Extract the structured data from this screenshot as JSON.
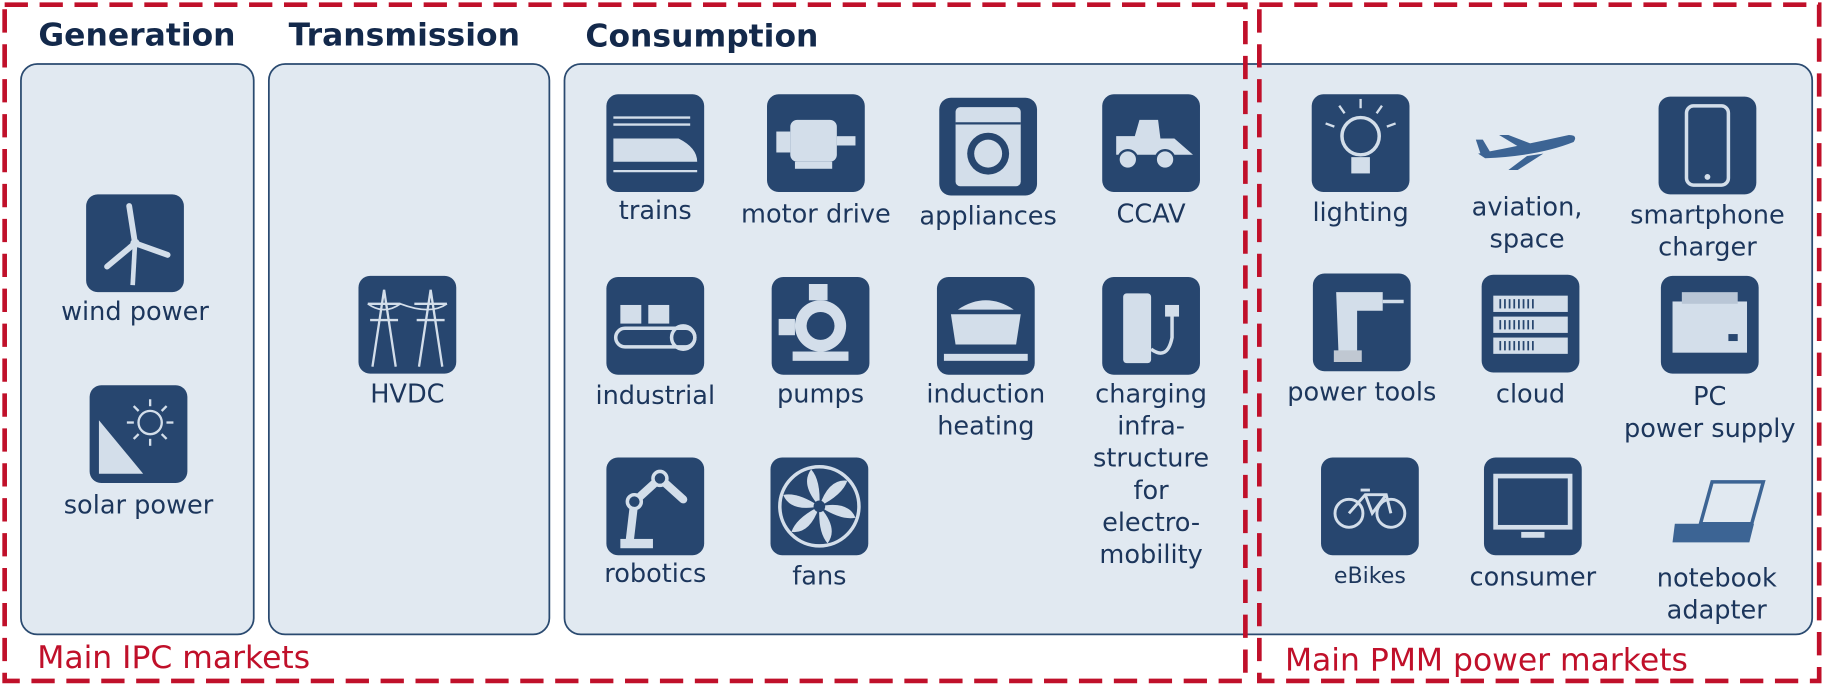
{
  "sections": [
    {
      "title": "Generation",
      "items": [
        {
          "label": [
            "wind power"
          ]
        },
        {
          "label": [
            "solar power"
          ]
        }
      ]
    },
    {
      "title": "Transmission",
      "items": [
        {
          "label": [
            "HVDC"
          ]
        }
      ]
    },
    {
      "title": "Consumption",
      "items": [
        {
          "label": [
            "trains"
          ]
        },
        {
          "label": [
            "motor drive"
          ]
        },
        {
          "label": [
            "appliances"
          ]
        },
        {
          "label": [
            "CCAV"
          ]
        },
        {
          "label": [
            "industrial"
          ]
        },
        {
          "label": [
            "pumps"
          ]
        },
        {
          "label": [
            "induction",
            "heating"
          ]
        },
        {
          "label": [
            "charging",
            "infra-",
            "structure",
            "for",
            "electro-",
            "mobility"
          ]
        },
        {
          "label": [
            "robotics"
          ]
        },
        {
          "label": [
            "fans"
          ]
        },
        {
          "label": [
            "lighting"
          ]
        },
        {
          "label": [
            "aviation,",
            "space"
          ]
        },
        {
          "label": [
            "smartphone",
            "charger"
          ]
        },
        {
          "label": [
            "power tools"
          ]
        },
        {
          "label": [
            "cloud"
          ]
        },
        {
          "label": [
            "PC",
            "power supply"
          ]
        },
        {
          "label": [
            "eBikes"
          ]
        },
        {
          "label": [
            "consumer"
          ]
        },
        {
          "label": [
            "notebook",
            "adapter"
          ]
        }
      ]
    }
  ],
  "markets": [
    "Main IPC markets",
    "Main PMM power markets"
  ]
}
